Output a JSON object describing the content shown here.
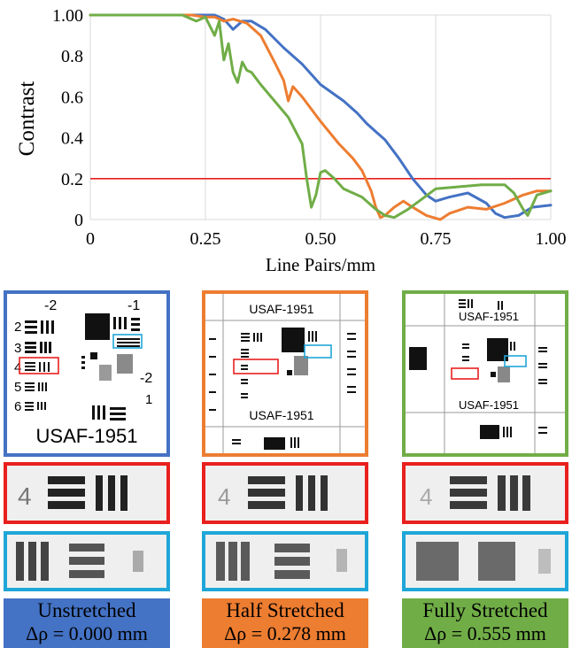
{
  "chart_data": {
    "type": "line",
    "xlabel": "Line Pairs/mm",
    "ylabel": "Contrast",
    "xlim": [
      0,
      1.0
    ],
    "ylim": [
      0,
      1.0
    ],
    "x_ticks": [
      "0",
      "0.25",
      "0.50",
      "0.75",
      "1.00"
    ],
    "x_tick_values": [
      0,
      0.25,
      0.5,
      0.75,
      1.0
    ],
    "y_ticks": [
      "0",
      "0.2",
      "0.4",
      "0.6",
      "0.8",
      "1.00"
    ],
    "y_tick_values": [
      0,
      0.2,
      0.4,
      0.6,
      0.8,
      1.0
    ],
    "grid": "vertical",
    "threshold": {
      "value": 0.2,
      "color": "#e8201e"
    },
    "series": [
      {
        "color": "#4472c4",
        "x": [
          0,
          0.2,
          0.27,
          0.29,
          0.31,
          0.33,
          0.35,
          0.38,
          0.42,
          0.46,
          0.5,
          0.55,
          0.58,
          0.6,
          0.62,
          0.64,
          0.67,
          0.7,
          0.73,
          0.75,
          0.78,
          0.82,
          0.86,
          0.88,
          0.9,
          0.93,
          0.96,
          1.0
        ],
        "y": [
          1.0,
          1.0,
          1.0,
          0.98,
          0.93,
          0.97,
          0.97,
          0.93,
          0.84,
          0.76,
          0.66,
          0.58,
          0.52,
          0.47,
          0.43,
          0.39,
          0.3,
          0.2,
          0.12,
          0.09,
          0.11,
          0.13,
          0.08,
          0.03,
          0.01,
          0.02,
          0.06,
          0.07
        ]
      },
      {
        "color": "#ed7d31",
        "x": [
          0,
          0.22,
          0.25,
          0.27,
          0.29,
          0.31,
          0.34,
          0.37,
          0.4,
          0.42,
          0.43,
          0.44,
          0.46,
          0.5,
          0.54,
          0.57,
          0.59,
          0.61,
          0.62,
          0.63,
          0.64,
          0.66,
          0.68,
          0.7,
          0.73,
          0.76,
          0.78,
          0.82,
          0.86,
          0.9,
          0.94,
          0.97,
          1.0
        ],
        "y": [
          1.0,
          1.0,
          0.99,
          0.99,
          0.97,
          0.98,
          0.96,
          0.9,
          0.77,
          0.68,
          0.58,
          0.65,
          0.6,
          0.48,
          0.37,
          0.3,
          0.24,
          0.14,
          0.06,
          0.01,
          0.02,
          0.06,
          0.09,
          0.06,
          0.02,
          0.0,
          0.03,
          0.06,
          0.05,
          0.08,
          0.12,
          0.14,
          0.14
        ]
      },
      {
        "color": "#70ad47",
        "x": [
          0,
          0.2,
          0.23,
          0.25,
          0.27,
          0.28,
          0.29,
          0.3,
          0.31,
          0.32,
          0.33,
          0.34,
          0.35,
          0.37,
          0.4,
          0.43,
          0.46,
          0.47,
          0.48,
          0.49,
          0.5,
          0.51,
          0.53,
          0.55,
          0.59,
          0.62,
          0.64,
          0.66,
          0.69,
          0.72,
          0.75,
          0.8,
          0.85,
          0.9,
          0.92,
          0.94,
          0.95,
          0.97,
          1.0
        ],
        "y": [
          1.0,
          1.0,
          0.97,
          0.99,
          0.9,
          0.97,
          0.78,
          0.86,
          0.72,
          0.67,
          0.77,
          0.73,
          0.72,
          0.66,
          0.58,
          0.5,
          0.37,
          0.2,
          0.06,
          0.12,
          0.23,
          0.24,
          0.2,
          0.15,
          0.11,
          0.05,
          0.02,
          0.01,
          0.05,
          0.1,
          0.15,
          0.16,
          0.17,
          0.17,
          0.13,
          0.05,
          0.02,
          0.12,
          0.14
        ]
      }
    ]
  },
  "target_label": "USAF-1951",
  "group_labels": {
    "minus2": "-2",
    "minus1": "-1",
    "e2": "2",
    "e3": "3",
    "e4": "4",
    "e5": "5",
    "e6": "6",
    "e1": "1"
  },
  "panels": [
    {
      "line1": "Unstretched",
      "line2": "Δρ = 0.000 mm",
      "color": "#4472c4",
      "text_color": "#000000"
    },
    {
      "line1": "Half Stretched",
      "line2": "Δρ = 0.278 mm",
      "color": "#ed7d31",
      "text_color": "#000000"
    },
    {
      "line1": "Fully Stretched",
      "line2": "Δρ = 0.555 mm",
      "color": "#70ad47",
      "text_color": "#000000"
    }
  ],
  "zoom_red_label": "4",
  "zoom_red_color": "#e8201e",
  "zoom_blue_color": "#1fa6d8"
}
